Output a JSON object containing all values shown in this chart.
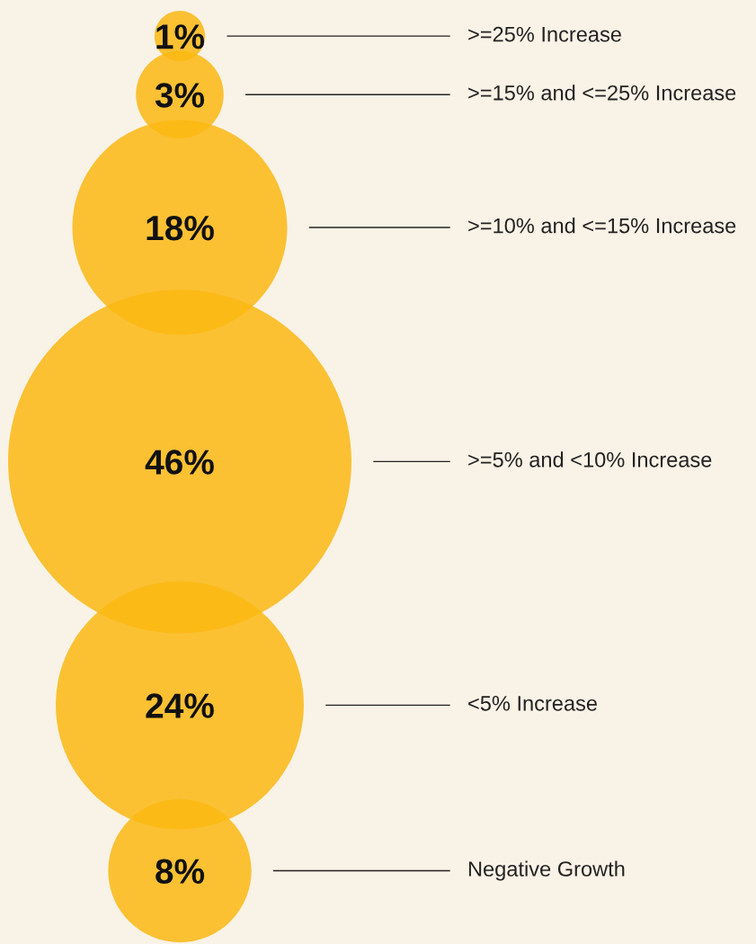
{
  "chart_data": {
    "type": "other",
    "categories": [
      ">=25% Increase",
      ">=15% and <=25% Increase",
      ">=10% and <=15% Increase",
      ">=5% and <10% Increase",
      "<5% Increase",
      "Negative Growth"
    ],
    "values": [
      1,
      3,
      18,
      46,
      24,
      8
    ],
    "value_labels": [
      "1%",
      "3%",
      "18%",
      "46%",
      "24%",
      "8%"
    ],
    "color": "#fbb813"
  }
}
